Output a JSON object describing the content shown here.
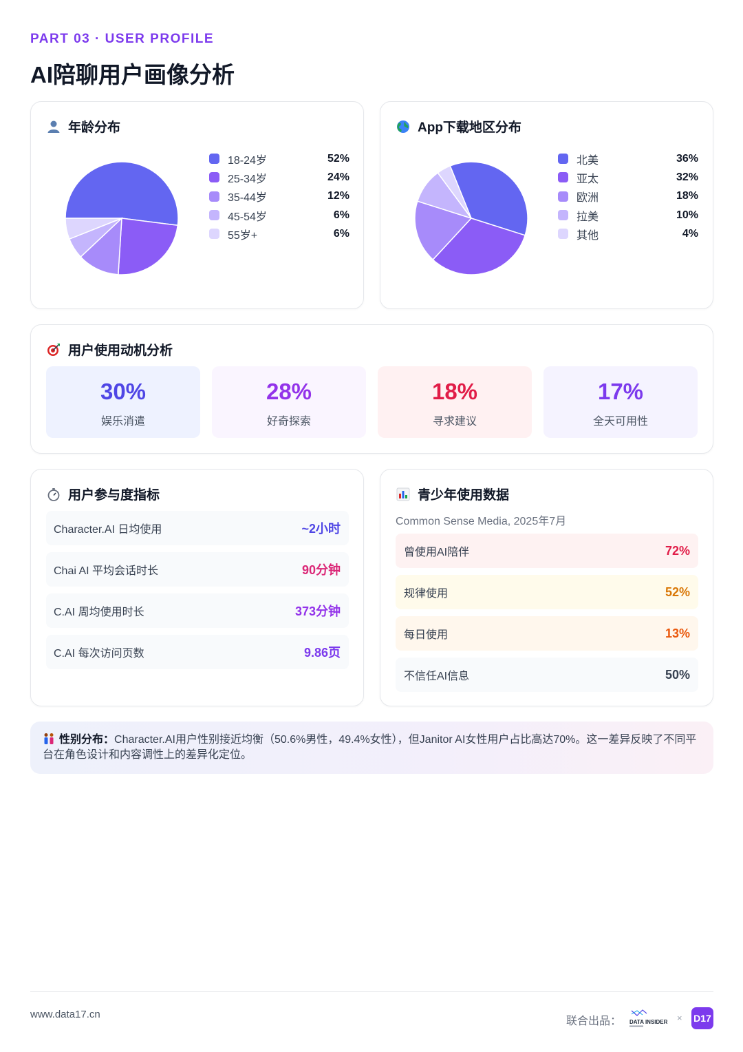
{
  "header": {
    "kicker": "PART 03 · USER PROFILE",
    "title": "AI陪聊用户画像分析"
  },
  "age": {
    "title": "年龄分布",
    "icon": "person-icon",
    "items": [
      {
        "label": "18-24岁",
        "value": "52%",
        "pct": 52,
        "color": "#6366f1"
      },
      {
        "label": "25-34岁",
        "value": "24%",
        "pct": 24,
        "color": "#8b5cf6"
      },
      {
        "label": "35-44岁",
        "value": "12%",
        "pct": 12,
        "color": "#a78bfa"
      },
      {
        "label": "45-54岁",
        "value": "6%",
        "pct": 6,
        "color": "#c4b5fd"
      },
      {
        "label": "55岁+",
        "value": "6%",
        "pct": 6,
        "color": "#ddd6fe"
      }
    ]
  },
  "region": {
    "title": "App下载地区分布",
    "icon": "globe-icon",
    "items": [
      {
        "label": "北美",
        "value": "36%",
        "pct": 36,
        "color": "#6366f1"
      },
      {
        "label": "亚太",
        "value": "32%",
        "pct": 32,
        "color": "#8b5cf6"
      },
      {
        "label": "欧洲",
        "value": "18%",
        "pct": 18,
        "color": "#a78bfa"
      },
      {
        "label": "拉美",
        "value": "10%",
        "pct": 10,
        "color": "#c4b5fd"
      },
      {
        "label": "其他",
        "value": "4%",
        "pct": 4,
        "color": "#ddd6fe"
      }
    ]
  },
  "motivation": {
    "title": "用户使用动机分析",
    "icon": "target-icon",
    "items": [
      {
        "value": "30%",
        "label": "娱乐消遣",
        "color": "#4f46e5",
        "bg": "#eef2ff"
      },
      {
        "value": "28%",
        "label": "好奇探索",
        "color": "#9333ea",
        "bg": "#faf5ff"
      },
      {
        "value": "18%",
        "label": "寻求建议",
        "color": "#e11d48",
        "bg": "#fff1f2"
      },
      {
        "value": "17%",
        "label": "全天可用性",
        "color": "#7c3aed",
        "bg": "#f5f3ff"
      }
    ]
  },
  "engagement": {
    "title": "用户参与度指标",
    "icon": "stopwatch-icon",
    "rows": [
      {
        "label": "Character.AI 日均使用",
        "value": "~2小时",
        "color": "#4f46e5"
      },
      {
        "label": "Chai AI 平均会话时长",
        "value": "90分钟",
        "color": "#db2777"
      },
      {
        "label": "C.AI 周均使用时长",
        "value": "373分钟",
        "color": "#9333ea"
      },
      {
        "label": "C.AI 每次访问页数",
        "value": "9.86页",
        "color": "#7c3aed"
      }
    ]
  },
  "teen": {
    "title": "青少年使用数据",
    "icon": "bar-chart-icon",
    "source": "Common Sense Media, 2025年7月",
    "rows": [
      {
        "label": "曾使用AI陪伴",
        "value": "72%",
        "color": "#e11d48",
        "bg": "#fef2f2"
      },
      {
        "label": "规律使用",
        "value": "52%",
        "color": "#d97706",
        "bg": "#fffbeb"
      },
      {
        "label": "每日使用",
        "value": "13%",
        "color": "#ea580c",
        "bg": "#fff7ed"
      },
      {
        "label": "不信任AI信息",
        "value": "50%",
        "color": "#374151",
        "bg": "#f8fafc"
      }
    ]
  },
  "note": {
    "icon": "people-icon",
    "label": "性别分布：",
    "text": "Character.AI用户性别接近均衡（50.6%男性，49.4%女性），但Janitor AI女性用户占比高达70%。这一差异反映了不同平台在角色设计和内容调性上的差异化定位。"
  },
  "footer": {
    "site": "www.data17.cn",
    "coproduced": "联合出品：",
    "partner_logo": "DATA INSIDER",
    "times": "×",
    "brand": "D17"
  }
}
